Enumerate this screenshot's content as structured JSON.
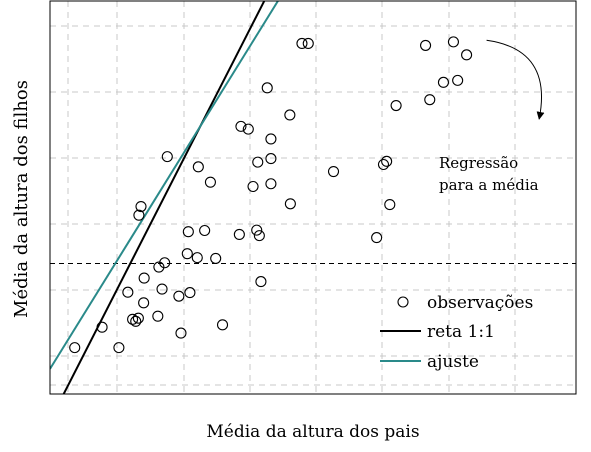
{
  "chart_data": {
    "type": "scatter",
    "title": "",
    "xlabel": "Média da altura dos pais",
    "ylabel": "Média da altura dos filhos",
    "xlim": [
      0,
      10
    ],
    "ylim": [
      0,
      10
    ],
    "grid": true,
    "tick_labels_visible": false,
    "legend": {
      "position": "bottom-right",
      "entries": [
        {
          "label": "observações",
          "marker": "circle-open",
          "color": "#000000"
        },
        {
          "label": "reta 1:1",
          "marker": "line",
          "color": "#000000"
        },
        {
          "label": "ajuste",
          "marker": "line",
          "color": "#2a8a8a"
        }
      ]
    },
    "series": [
      {
        "name": "observações",
        "kind": "scatter",
        "color": "#000000",
        "x": [
          0.47,
          0.99,
          1.31,
          1.48,
          1.63,
          1.57,
          1.68,
          1.79,
          1.69,
          1.73,
          1.78,
          2.13,
          2.05,
          2.07,
          2.18,
          2.23,
          2.45,
          2.61,
          2.49,
          2.63,
          2.66,
          2.8,
          2.82,
          2.94,
          3.05,
          3.15,
          3.28,
          3.6,
          3.63,
          3.77,
          3.86,
          3.95,
          3.93,
          3.98,
          4.01,
          4.13,
          4.2,
          4.2,
          4.2,
          4.56,
          4.57,
          4.79,
          4.91,
          5.39,
          6.46,
          6.21,
          6.34,
          6.4,
          6.58,
          7.22,
          7.48,
          7.14,
          7.67,
          7.92,
          7.75
        ],
        "y": [
          1.18,
          1.7,
          1.18,
          2.59,
          1.85,
          1.9,
          1.93,
          2.95,
          4.55,
          4.77,
          2.32,
          2.67,
          1.98,
          3.23,
          3.34,
          6.04,
          2.49,
          3.57,
          1.55,
          4.13,
          2.58,
          3.47,
          5.78,
          4.16,
          5.39,
          3.45,
          1.76,
          4.06,
          6.81,
          6.74,
          5.28,
          5.9,
          4.17,
          4.03,
          2.86,
          7.79,
          5.99,
          5.35,
          6.49,
          7.1,
          4.84,
          8.92,
          8.92,
          5.66,
          4.82,
          3.98,
          5.84,
          5.92,
          7.34,
          7.49,
          7.93,
          8.87,
          8.96,
          8.63,
          7.98
        ]
      },
      {
        "name": "reta 1:1",
        "kind": "line",
        "color": "#000000",
        "x": [
          0.26,
          4.87
        ],
        "y": [
          0.0,
          12.09
        ]
      },
      {
        "name": "ajuste",
        "kind": "line",
        "color": "#2a8a8a",
        "x": [
          0.0,
          4.87
        ],
        "y": [
          0.64,
          11.16
        ]
      }
    ],
    "reference_line": {
      "y": 3.32,
      "style": "dashed",
      "color": "#000000"
    },
    "annotation": {
      "lines": [
        "Regressão",
        "para a média"
      ],
      "arrow_from": [
        8.3,
        9.0
      ],
      "arrow_to": [
        9.3,
        7.0
      ]
    }
  }
}
